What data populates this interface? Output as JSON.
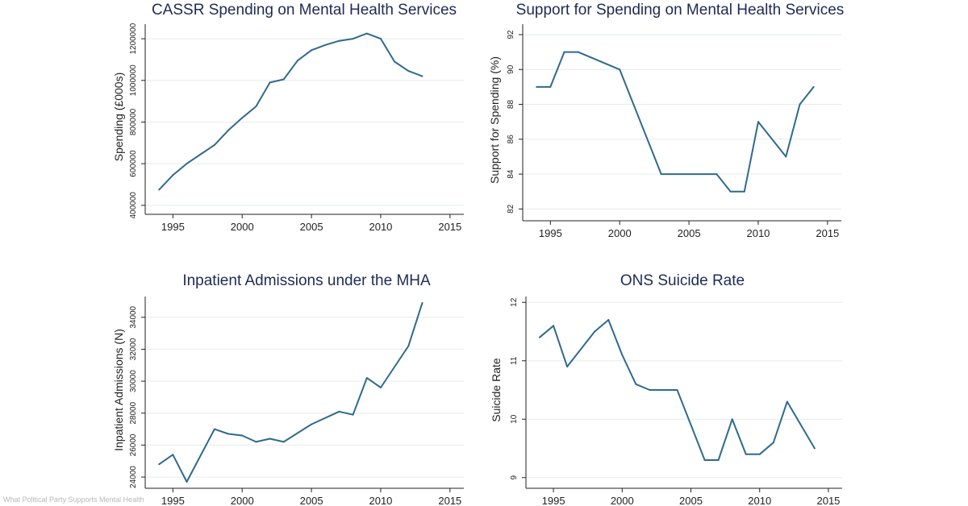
{
  "page": {
    "caption": "What Political Party Supports Mental Health"
  },
  "colors": {
    "line": "#2f6a8e",
    "title": "#1e2a55",
    "axis": "#222222",
    "grid": "#e6ecef"
  },
  "chart_data": [
    {
      "type": "line",
      "title": "CASSR Spending on Mental Health Services",
      "xlabel": "",
      "ylabel": "Spending (£000s)",
      "xlim": [
        1993,
        2016
      ],
      "ylim": [
        380000,
        1270000
      ],
      "xticks": [
        1995,
        2000,
        2005,
        2010,
        2015
      ],
      "yticks": [
        400000,
        600000,
        800000,
        1000000,
        1200000
      ],
      "ytick_labels": [
        "400000",
        "600000",
        "800000",
        "1000000",
        "1200000"
      ],
      "grid": true,
      "x": [
        1994,
        1995,
        1996,
        1997,
        1998,
        1999,
        2000,
        2001,
        2002,
        2003,
        2004,
        2005,
        2006,
        2007,
        2008,
        2009,
        2010,
        2011,
        2012,
        2013
      ],
      "y": [
        475000,
        545000,
        600000,
        645000,
        690000,
        760000,
        820000,
        875000,
        990000,
        1005000,
        1095000,
        1145000,
        1170000,
        1190000,
        1200000,
        1225000,
        1200000,
        1090000,
        1045000,
        1020000
      ]
    },
    {
      "type": "line",
      "title": "Support for Spending on Mental Health Services",
      "xlabel": "",
      "ylabel": "Support for Spending (%)",
      "xlim": [
        1993,
        2016
      ],
      "ylim": [
        81.6,
        92.6
      ],
      "xticks": [
        1995,
        2000,
        2005,
        2010,
        2015
      ],
      "yticks": [
        82,
        84,
        86,
        88,
        90,
        92
      ],
      "ytick_labels": [
        "82",
        "84",
        "86",
        "88",
        "90",
        "92"
      ],
      "grid": true,
      "x": [
        1994,
        1995,
        1996,
        1997,
        2000,
        2003,
        2007,
        2008,
        2009,
        2010,
        2012,
        2013,
        2014
      ],
      "y": [
        89,
        89,
        91,
        91,
        90,
        84,
        84,
        83,
        83,
        87,
        85,
        88,
        89
      ]
    },
    {
      "type": "line",
      "title": "Inpatient Admissions under the MHA",
      "xlabel": "",
      "ylabel": "Inpatient Admissions (N)",
      "xlim": [
        1993,
        2016
      ],
      "ylim": [
        23600,
        35300
      ],
      "xticks": [
        1995,
        2000,
        2005,
        2010,
        2015
      ],
      "yticks": [
        24000,
        26000,
        28000,
        30000,
        32000,
        34000
      ],
      "ytick_labels": [
        "24000",
        "26000",
        "28000",
        "30000",
        "32000",
        "34000"
      ],
      "grid": true,
      "x": [
        1994,
        1995,
        1996,
        1998,
        1999,
        2000,
        2001,
        2002,
        2003,
        2005,
        2007,
        2008,
        2009,
        2010,
        2012,
        2013
      ],
      "y": [
        24800,
        25400,
        23700,
        27000,
        26700,
        26600,
        26200,
        26400,
        26200,
        27300,
        28100,
        27900,
        30200,
        29600,
        32200,
        34900
      ]
    },
    {
      "type": "line",
      "title": "ONS Suicide Rate",
      "xlabel": "",
      "ylabel": "Suicide Rate",
      "xlim": [
        1993,
        2016
      ],
      "ylim": [
        8.9,
        12.1
      ],
      "xticks": [
        1995,
        2000,
        2005,
        2010,
        2015
      ],
      "yticks": [
        9,
        10,
        11,
        12
      ],
      "ytick_labels": [
        "9",
        "10",
        "11",
        "12"
      ],
      "grid": true,
      "x": [
        1994,
        1995,
        1996,
        1998,
        1999,
        2000,
        2001,
        2002,
        2004,
        2006,
        2007,
        2008,
        2009,
        2010,
        2011,
        2012,
        2014
      ],
      "y": [
        11.4,
        11.6,
        10.9,
        11.5,
        11.7,
        11.1,
        10.6,
        10.5,
        10.5,
        9.3,
        9.3,
        10.0,
        9.4,
        9.4,
        9.6,
        10.3,
        9.5
      ]
    }
  ]
}
